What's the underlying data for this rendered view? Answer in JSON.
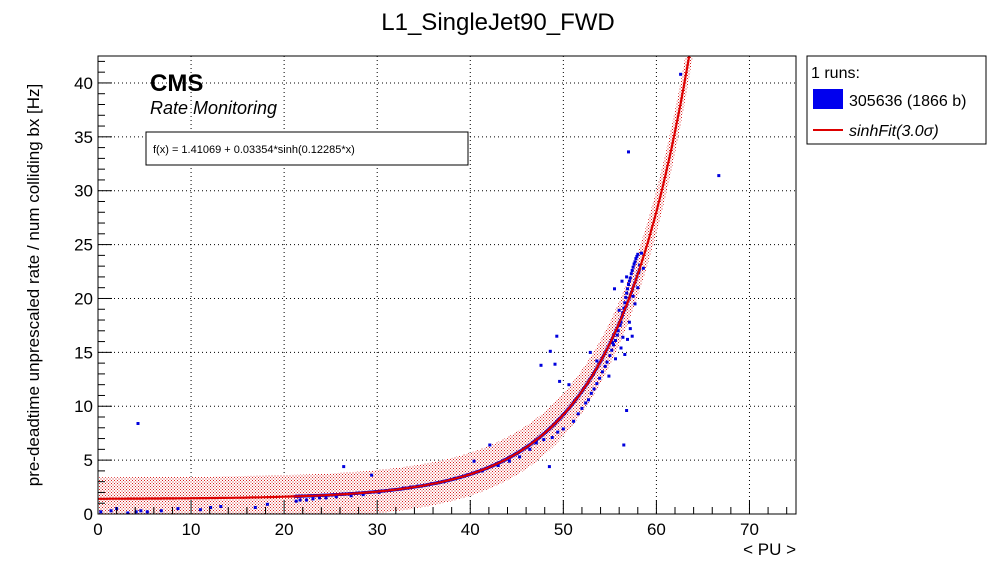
{
  "chart_data": {
    "type": "scatter",
    "title": "L1_SingleJet90_FWD",
    "xlabel": "< PU >",
    "ylabel": "pre-deadtime unprescaled rate / num colliding bx [Hz]",
    "xlim": [
      0,
      75
    ],
    "ylim": [
      0,
      42.5
    ],
    "xticks": [
      0,
      10,
      20,
      30,
      40,
      50,
      60,
      70
    ],
    "yticks": [
      0,
      5,
      10,
      15,
      20,
      25,
      30,
      35,
      40
    ],
    "grid": true,
    "legend_position": "outside-right",
    "annotations": {
      "experiment": "CMS",
      "subtitle": "Rate Monitoring",
      "formula": "f(x) = 1.41069 + 0.03354*sinh(0.12285*x)"
    },
    "legend": {
      "header": "1 runs:",
      "entries": [
        "305636 (1866 b)",
        "sinhFit(3.0σ)"
      ]
    },
    "fit": {
      "name": "sinhFit(3.0σ)",
      "a": 1.41069,
      "b": 0.03354,
      "c": 0.12285,
      "band_halfwidth": 2.0,
      "color": "#dd0000"
    },
    "series": [
      {
        "name": "305636 (1866 b)",
        "color": "#0000dd",
        "x": [
          0.3,
          1.4,
          2.0,
          3.2,
          4.1,
          4.6,
          5.3,
          6.8,
          8.6,
          11.0,
          12.1,
          13.2,
          16.9,
          18.2,
          4.3,
          21.3,
          21.7,
          22.4,
          23.1,
          23.8,
          24.5,
          25.6,
          26.4,
          27.2,
          28.5,
          29.4,
          30.2,
          31.5,
          32.8,
          33.6,
          34.4,
          35.8,
          36.5,
          37.2,
          38.3,
          38.9,
          39.6,
          40.4,
          41.3,
          42.1,
          43.0,
          44.2,
          45.3,
          46.4,
          47.1,
          47.6,
          47.9,
          48.5,
          48.8,
          49.1,
          48.6,
          49.3,
          49.6,
          50.0,
          50.6,
          51.1,
          51.6,
          52.0,
          52.4,
          52.7,
          53.0,
          53.3,
          53.6,
          53.9,
          54.2,
          54.5,
          54.7,
          55.0,
          55.2,
          55.4,
          55.6,
          55.8,
          55.9,
          56.1,
          56.2,
          56.3,
          56.4,
          56.5,
          56.6,
          56.7,
          56.8,
          56.9,
          57.0,
          57.1,
          57.2,
          57.3,
          57.4,
          57.5,
          57.6,
          57.7,
          57.8,
          57.9,
          58.0,
          58.2,
          58.4,
          52.9,
          53.6,
          55.5,
          56.0,
          56.3,
          56.8,
          57.1,
          57.4,
          57.7,
          58.0,
          55.6,
          56.2,
          56.9,
          57.5,
          58.1,
          54.9,
          55.3,
          56.6,
          57.2,
          56.5,
          56.8,
          56.4,
          57.0,
          58.6,
          62.6,
          66.7,
          49.4
        ],
        "y": [
          0.2,
          0.3,
          0.5,
          0.1,
          0.2,
          0.3,
          0.2,
          0.3,
          0.5,
          0.4,
          0.6,
          0.7,
          0.6,
          0.9,
          8.4,
          1.2,
          1.3,
          1.3,
          1.4,
          1.5,
          1.5,
          1.6,
          4.4,
          1.7,
          1.8,
          3.6,
          2.0,
          2.2,
          2.4,
          2.5,
          2.6,
          2.8,
          2.9,
          3.0,
          3.3,
          3.4,
          3.6,
          4.9,
          4.0,
          6.4,
          4.5,
          4.9,
          5.3,
          6.0,
          6.6,
          13.8,
          6.9,
          4.4,
          7.1,
          13.9,
          15.1,
          16.5,
          12.3,
          7.9,
          12.0,
          8.6,
          9.3,
          9.8,
          10.3,
          10.6,
          11.2,
          11.6,
          12.1,
          12.6,
          13.2,
          13.7,
          14.1,
          14.7,
          15.2,
          15.7,
          16.1,
          16.6,
          17.0,
          17.5,
          17.8,
          18.3,
          18.7,
          19.1,
          19.6,
          20.1,
          20.5,
          20.9,
          21.3,
          21.6,
          21.9,
          22.3,
          22.6,
          22.9,
          23.2,
          23.4,
          23.7,
          23.9,
          24.1,
          23.1,
          24.2,
          15.0,
          14.2,
          20.9,
          18.9,
          21.6,
          22.0,
          17.8,
          16.5,
          19.5,
          21.0,
          14.4,
          15.4,
          16.2,
          20.2,
          22.4,
          12.8,
          15.9,
          14.8,
          17.2,
          6.4,
          9.6,
          16.4,
          33.6,
          22.8,
          40.8,
          31.4,
          7.6
        ]
      }
    ]
  }
}
